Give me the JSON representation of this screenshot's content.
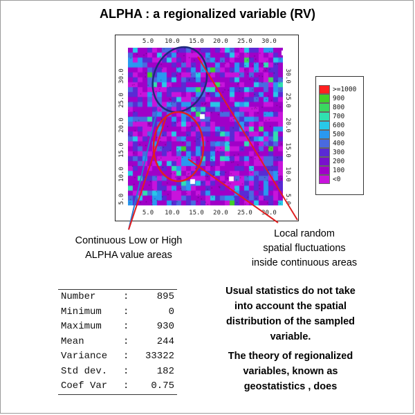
{
  "title": "ALPHA : a regionalized variable (RV)",
  "map": {
    "x_ticks": [
      "5.0",
      "10.0",
      "15.0",
      "20.0",
      "25.0",
      "30.0"
    ],
    "y_ticks": [
      "5.0",
      "10.0",
      "15.0",
      "20.0",
      "25.0",
      "30.0"
    ],
    "x_range": [
      0,
      32
    ],
    "y_range": [
      0,
      32
    ],
    "grid_cols": 32,
    "grid_rows": 32,
    "color_scale": [
      "#a000c8",
      "#c814dc",
      "#5a2ad4",
      "#4a6ae0",
      "#2a98f0",
      "#28c8e8",
      "#30e0b0",
      "#3ad860",
      "#40d028",
      "#ff2020"
    ],
    "low_value_areas_color": "#1e2a7a",
    "high_value_areas_color": "#e02020"
  },
  "legend": {
    "entries": [
      {
        "label": ">=1000",
        "color": "#ff2020"
      },
      {
        "label": "900",
        "color": "#40d028"
      },
      {
        "label": "800",
        "color": "#3ad860"
      },
      {
        "label": "700",
        "color": "#30e0b0"
      },
      {
        "label": "600",
        "color": "#28c8e8"
      },
      {
        "label": "500",
        "color": "#2a98f0"
      },
      {
        "label": "400",
        "color": "#4a6ae0"
      },
      {
        "label": "300",
        "color": "#5a2ad4"
      },
      {
        "label": "200",
        "color": "#7810cc"
      },
      {
        "label": "100",
        "color": "#a000c8"
      },
      {
        "label": "<0",
        "color": "#c814dc"
      }
    ]
  },
  "annotations": {
    "continuous_areas": [
      "Continuous Low or High",
      "ALPHA value areas"
    ],
    "local_fluctuations": [
      "Local random",
      "spatial fluctuations",
      "inside continuous areas"
    ]
  },
  "stats": [
    {
      "name": "Number",
      "value": "895"
    },
    {
      "name": "Minimum",
      "value": "0"
    },
    {
      "name": "Maximum",
      "value": "930"
    },
    {
      "name": "Mean",
      "value": "244"
    },
    {
      "name": "Variance",
      "value": "33322"
    },
    {
      "name": "Std dev.",
      "value": "182"
    },
    {
      "name": "Coef Var",
      "value": "0.75"
    }
  ],
  "note": {
    "lines": [
      "Usual statistics do not take",
      "into account the spatial",
      "distribution of the sampled",
      "variable.",
      "The theory of regionalized",
      "variables, known  as",
      "geostatistics , does"
    ]
  }
}
